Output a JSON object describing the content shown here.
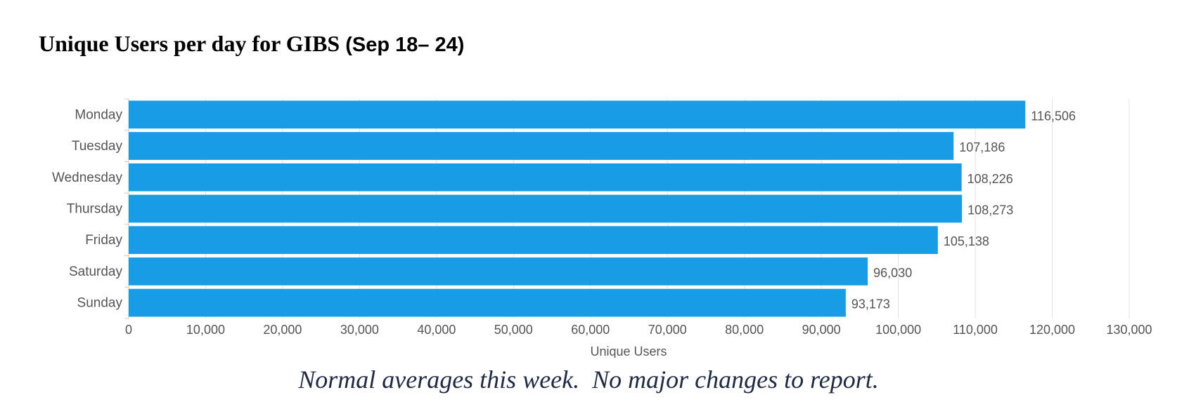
{
  "page": {
    "title_main": "Unique Users per day for GIBS ",
    "title_range": "(Sep 18– 24)",
    "caption": "Normal averages this week.  No major changes to report."
  },
  "colors": {
    "bar": "#189ce6",
    "gridline": "#e3e3e3",
    "axis_text": "#555555",
    "caption": "#1f2a44"
  },
  "chart_data": {
    "type": "bar",
    "orientation": "horizontal",
    "categories": [
      "Monday",
      "Tuesday",
      "Wednesday",
      "Thursday",
      "Friday",
      "Saturday",
      "Sunday"
    ],
    "values": [
      116506,
      107186,
      108226,
      108273,
      105138,
      96030,
      93173
    ],
    "value_labels": [
      "116,506",
      "107,186",
      "108,226",
      "108,273",
      "105,138",
      "96,030",
      "93,173"
    ],
    "xlabel": "Unique Users",
    "ylabel": "",
    "xlim": [
      0,
      130000
    ],
    "x_ticks": [
      0,
      10000,
      20000,
      30000,
      40000,
      50000,
      60000,
      70000,
      80000,
      90000,
      100000,
      110000,
      120000,
      130000
    ],
    "x_tick_labels": [
      "0",
      "10,000",
      "20,000",
      "30,000",
      "40,000",
      "50,000",
      "60,000",
      "70,000",
      "80,000",
      "90,000",
      "100,000",
      "110,000",
      "120,000",
      "130,000"
    ],
    "grid": true,
    "legend": "none"
  }
}
